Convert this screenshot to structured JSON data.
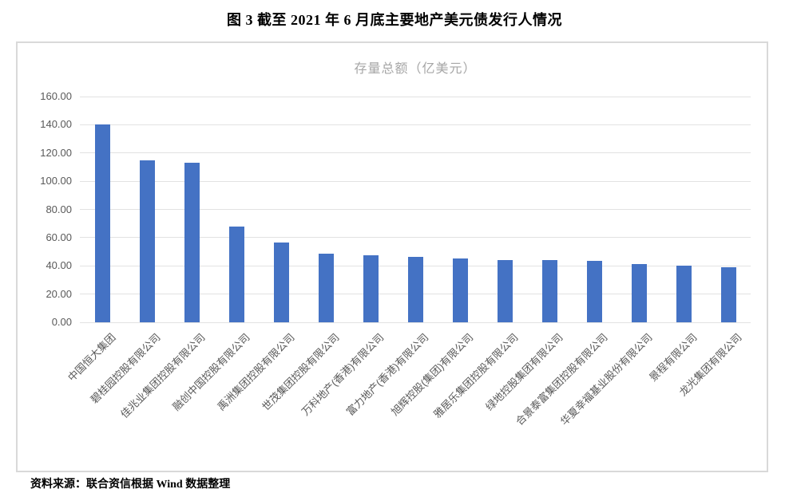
{
  "page": {
    "title": "图 3  截至 2021 年 6 月底主要地产美元债发行人情况",
    "source": "资料来源：联合资信根据 Wind 数据整理"
  },
  "chart_data": {
    "type": "bar",
    "title": "存量总额（亿美元）",
    "categories": [
      "中国恒大集团",
      "碧桂园控股有限公司",
      "佳兆业集团控股有限公司",
      "融创中国控股有限公司",
      "禹洲集团控股有限公司",
      "世茂集团控股有限公司",
      "万科地产(香港)有限公司",
      "富力地产(香港)有限公司",
      "旭辉控股(集团)有限公司",
      "雅居乐集团控股有限公司",
      "绿地控股集团有限公司",
      "合景泰富集团控股有限公司",
      "华夏幸福基业股份有限公司",
      "景程有限公司",
      "龙光集团有限公司"
    ],
    "values": [
      140.2,
      114.6,
      113.2,
      67.8,
      56.7,
      48.6,
      47.5,
      46.5,
      45.2,
      44.3,
      44.1,
      43.3,
      41.1,
      40.2,
      38.9
    ],
    "xlabel": "",
    "ylabel": "",
    "ylim": [
      0,
      160
    ],
    "ytick_interval": 20,
    "ytick_decimals": 2,
    "grid": true,
    "legend": false,
    "bar_color": "#4472C4",
    "gridline_color": "#E2E2E2",
    "axis_text_color": "#595959",
    "title_color": "#A6A6A6",
    "frame_border_color": "#D9D9D9"
  }
}
